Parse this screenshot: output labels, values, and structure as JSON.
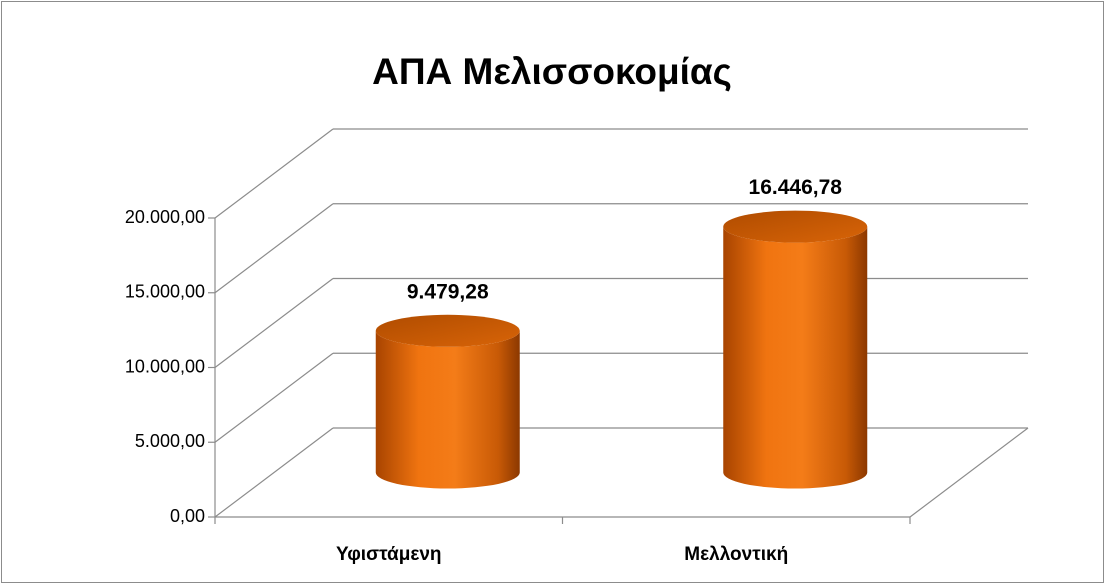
{
  "chart_data": {
    "type": "bar3d-cylinder",
    "title": "ΑΠΑ Μελισσοκομίας",
    "categories": [
      "Υφιστάμενη",
      "Μελλοντική"
    ],
    "values": [
      9479.28,
      16446.78
    ],
    "value_labels": [
      "9.479,28",
      "16.446,78"
    ],
    "color": "#f07818",
    "ylim": [
      0,
      20000
    ],
    "yticks": [
      {
        "value": 0,
        "label": "0,00"
      },
      {
        "value": 5000,
        "label": "5.000,00"
      },
      {
        "value": 10000,
        "label": "10.000,00"
      },
      {
        "value": 15000,
        "label": "15.000,00"
      },
      {
        "value": 20000,
        "label": "20.000,00"
      }
    ],
    "grid": true
  }
}
